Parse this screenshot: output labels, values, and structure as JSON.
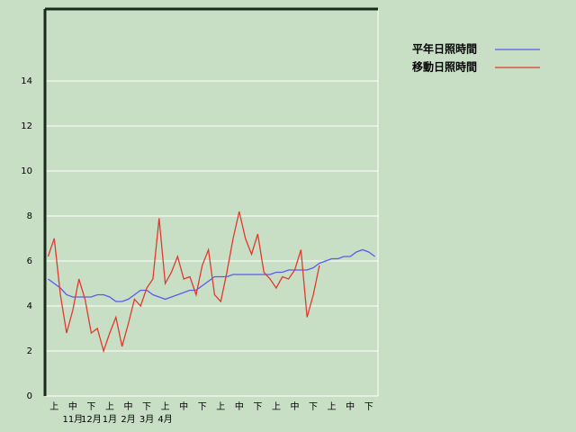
{
  "chart_data": {
    "type": "line",
    "categories": [
      null,
      "上",
      null,
      null,
      "中",
      null,
      null,
      "下",
      null,
      null,
      "上",
      null,
      null,
      "中",
      null,
      null,
      "下",
      null,
      null,
      "上",
      null,
      null,
      "中",
      null,
      null,
      "下",
      null,
      null,
      "上",
      null,
      null,
      "中",
      null,
      null,
      "下",
      null,
      null,
      "上",
      null,
      null,
      "中",
      null,
      null,
      "下",
      null,
      null,
      "上",
      null,
      null,
      "中",
      null,
      null,
      "下",
      null
    ],
    "months": [
      "11月",
      "12月",
      "1月",
      "2月",
      "3月",
      "4月"
    ],
    "series": [
      {
        "name": "平年日照時間",
        "color": "#5a5af0",
        "values": [
          5.2,
          5.0,
          4.8,
          4.5,
          4.4,
          4.4,
          4.4,
          4.4,
          4.5,
          4.5,
          4.4,
          4.2,
          4.2,
          4.3,
          4.5,
          4.7,
          4.7,
          4.5,
          4.4,
          4.3,
          4.4,
          4.5,
          4.6,
          4.7,
          4.7,
          4.9,
          5.1,
          5.3,
          5.3,
          5.3,
          5.4,
          5.4,
          5.4,
          5.4,
          5.4,
          5.4,
          5.4,
          5.5,
          5.5,
          5.6,
          5.6,
          5.6,
          5.6,
          5.7,
          5.9,
          6.0,
          6.1,
          6.1,
          6.2,
          6.2,
          6.4,
          6.5,
          6.4,
          6.2
        ]
      },
      {
        "name": "移動日照時間",
        "color": "#e03a2e",
        "values": [
          6.2,
          7.0,
          4.5,
          2.8,
          3.8,
          5.2,
          4.3,
          2.8,
          3.0,
          2.0,
          2.8,
          3.5,
          2.2,
          3.2,
          4.3,
          4.0,
          4.8,
          5.2,
          7.9,
          5.0,
          5.5,
          6.2,
          5.2,
          5.3,
          4.5,
          5.8,
          6.5,
          4.5,
          4.2,
          5.5,
          7.0,
          8.2,
          7.0,
          6.3,
          7.2,
          5.5,
          5.2,
          4.8,
          5.3,
          5.2,
          5.6,
          6.5,
          3.5,
          4.5,
          5.8,
          null,
          null,
          null,
          null,
          null,
          null,
          null,
          null,
          null
        ]
      }
    ],
    "ylim": [
      0,
      17.2
    ],
    "yticks": [
      0,
      2,
      4,
      6,
      8,
      10,
      12,
      14
    ],
    "grid": true,
    "legend": "top-right"
  }
}
